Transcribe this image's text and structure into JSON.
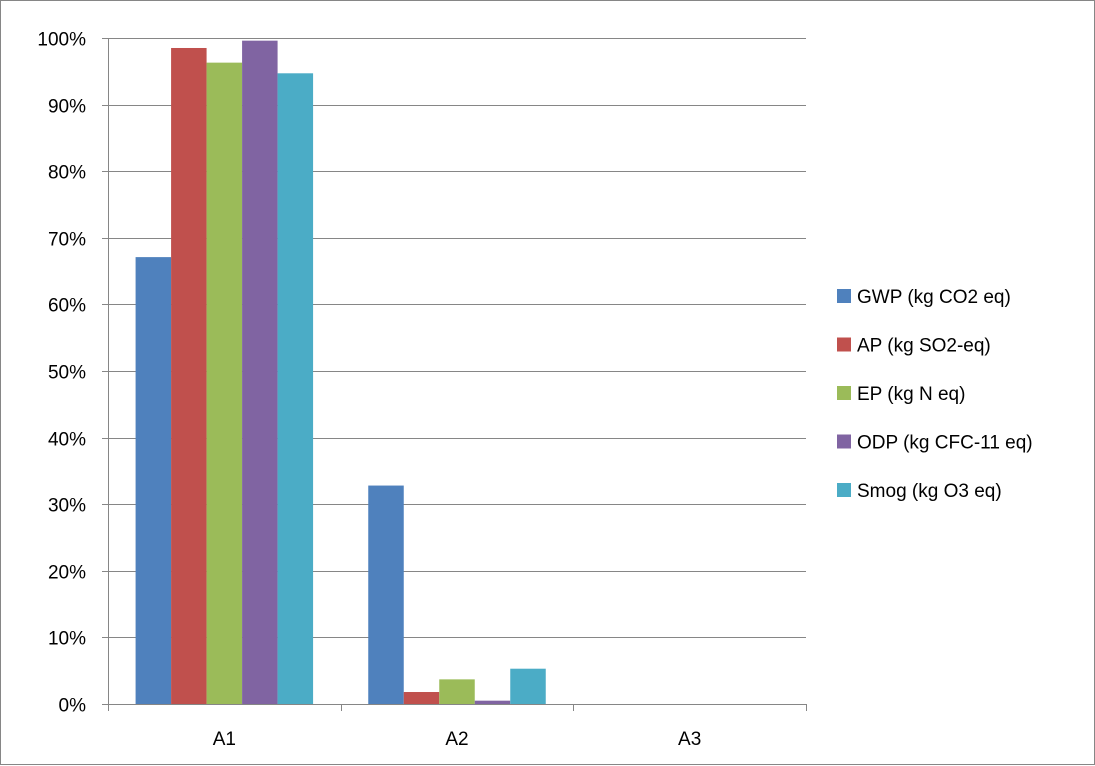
{
  "chart_data": {
    "type": "bar",
    "title": "",
    "xlabel": "",
    "ylabel": "",
    "categories": [
      "A1",
      "A2",
      "A3"
    ],
    "ylim": [
      0,
      1
    ],
    "yticks": [
      {
        "value": 0.0,
        "label": "0%"
      },
      {
        "value": 0.1,
        "label": "10%"
      },
      {
        "value": 0.2,
        "label": "20%"
      },
      {
        "value": 0.3,
        "label": "30%"
      },
      {
        "value": 0.4,
        "label": "40%"
      },
      {
        "value": 0.5,
        "label": "50%"
      },
      {
        "value": 0.6,
        "label": "60%"
      },
      {
        "value": 0.7,
        "label": "70%"
      },
      {
        "value": 0.8,
        "label": "80%"
      },
      {
        "value": 0.9,
        "label": "90%"
      },
      {
        "value": 1.0,
        "label": "100%"
      }
    ],
    "grid": true,
    "legend_position": "right",
    "series": [
      {
        "name": "GWP (kg CO2 eq)",
        "color": "#4f81bd",
        "values": [
          0.671,
          0.328,
          0.0
        ]
      },
      {
        "name": "AP (kg SO2-eq)",
        "color": "#c0504d",
        "values": [
          0.985,
          0.018,
          0.0
        ]
      },
      {
        "name": "EP (kg N eq)",
        "color": "#9bbb59",
        "values": [
          0.963,
          0.037,
          0.0
        ]
      },
      {
        "name": "ODP (kg CFC-11 eq)",
        "color": "#8064a2",
        "values": [
          0.996,
          0.005,
          0.0
        ]
      },
      {
        "name": "Smog (kg O3 eq)",
        "color": "#4bacc6",
        "values": [
          0.947,
          0.053,
          0.0
        ]
      }
    ]
  }
}
